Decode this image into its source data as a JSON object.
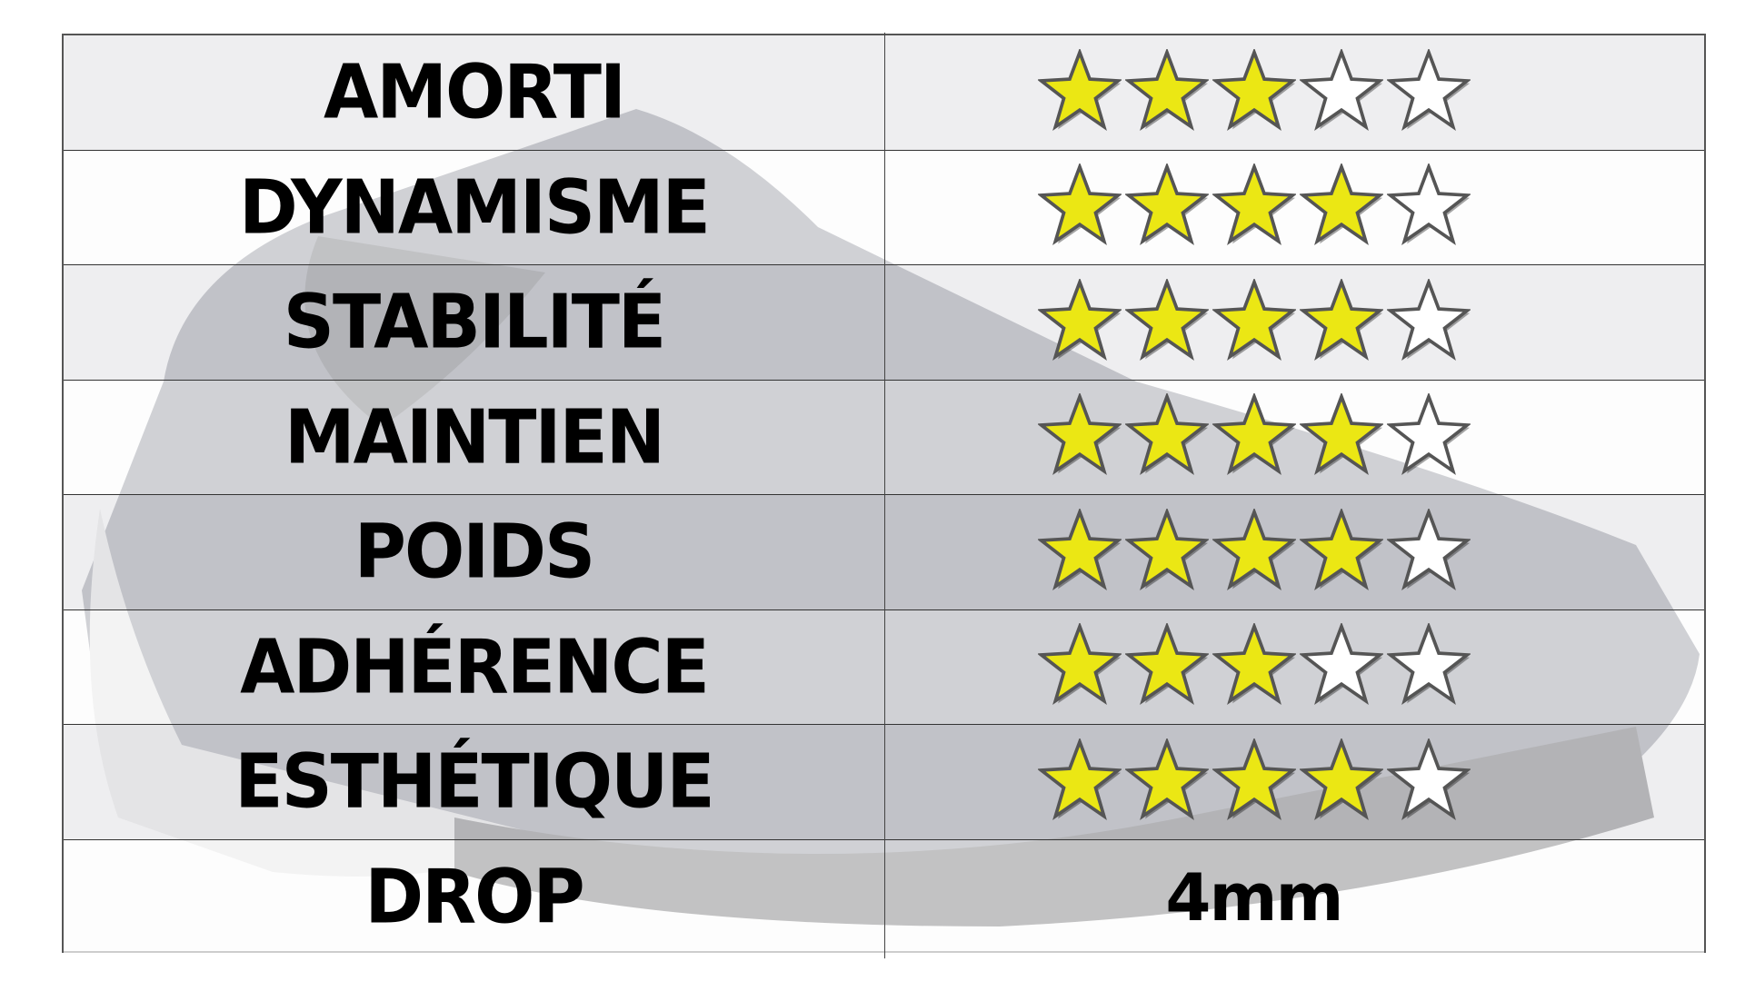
{
  "colors": {
    "star_filled": "#ebe714",
    "star_empty": "#ffffff",
    "star_outline": "#555555",
    "row_alt": "#e8e8ea"
  },
  "max_stars": 5,
  "rows": [
    {
      "label": "AMORTI",
      "rating": 3
    },
    {
      "label": "DYNAMISME",
      "rating": 4
    },
    {
      "label": "STABILITÉ",
      "rating": 4
    },
    {
      "label": "MAINTIEN",
      "rating": 4
    },
    {
      "label": "POIDS",
      "rating": 4
    },
    {
      "label": "ADHÉRENCE",
      "rating": 3
    },
    {
      "label": "ESTHÉTIQUE",
      "rating": 4
    }
  ],
  "drop": {
    "label": "DROP",
    "value": "4mm"
  }
}
